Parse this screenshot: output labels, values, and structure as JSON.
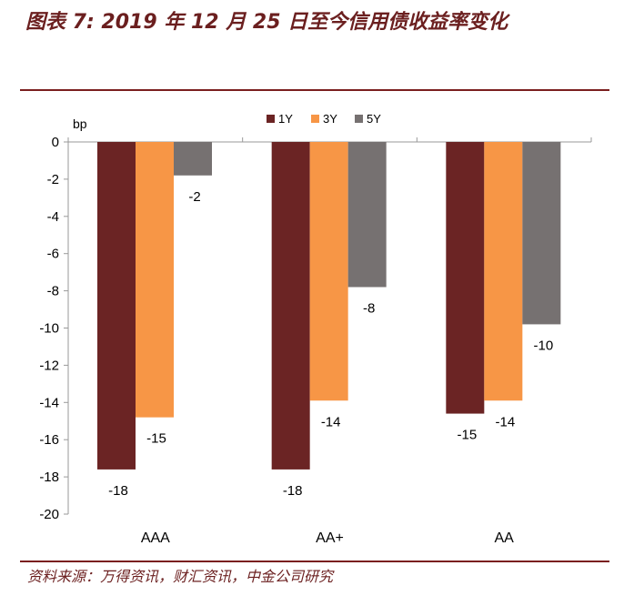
{
  "title": "图表 7: 2019 年 12 月 25 日至今信用债收益率变化",
  "source": "资料来源：万得资讯，财汇资讯，中金公司研究",
  "colors": {
    "accent": "#7a1f1f",
    "1Y": "#6b2424",
    "3Y": "#f79646",
    "5Y": "#767171"
  },
  "chart_data": {
    "type": "bar",
    "ylabel": "bp",
    "ylim": [
      -20,
      0
    ],
    "yticks": [
      0,
      -2,
      -4,
      -6,
      -8,
      -10,
      -12,
      -14,
      -16,
      -18,
      -20
    ],
    "categories": [
      "AAA",
      "AA+",
      "AA"
    ],
    "legend_position": "top-right",
    "series": [
      {
        "name": "1Y",
        "values": [
          -17.6,
          -17.6,
          -14.6
        ],
        "labels": [
          "-18",
          "-18",
          "-15"
        ]
      },
      {
        "name": "3Y",
        "values": [
          -14.8,
          -13.9,
          -13.9
        ],
        "labels": [
          "-15",
          "-14",
          "-14"
        ]
      },
      {
        "name": "5Y",
        "values": [
          -1.8,
          -7.8,
          -9.8
        ],
        "labels": [
          "-2",
          "-8",
          "-10"
        ]
      }
    ]
  }
}
